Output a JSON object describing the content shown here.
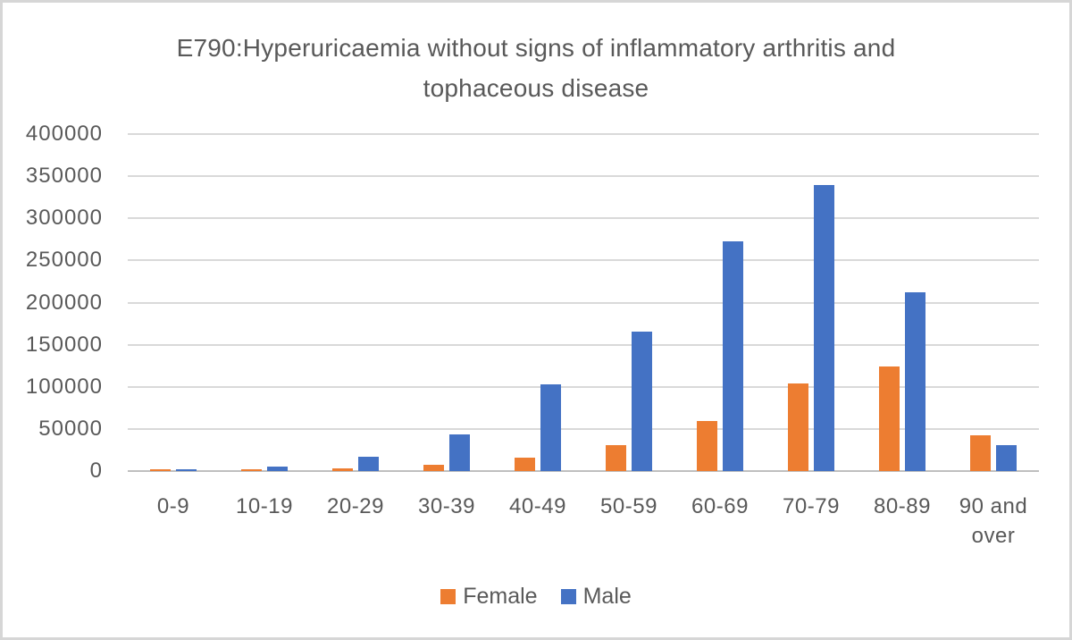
{
  "chart_data": {
    "type": "bar",
    "title": "E790:Hyperuricaemia without signs of inflammatory arthritis and tophaceous disease",
    "title_lines": [
      "E790:Hyperuricaemia without signs of inflammatory arthritis and",
      "tophaceous disease"
    ],
    "categories": [
      "0-9",
      "10-19",
      "20-29",
      "30-39",
      "40-49",
      "50-59",
      "60-69",
      "70-79",
      "80-89",
      "90 and over"
    ],
    "series": [
      {
        "name": "Female",
        "color": "#ED7D31",
        "values": [
          2000,
          1500,
          3500,
          7000,
          16000,
          31000,
          59000,
          104000,
          124000,
          42000
        ]
      },
      {
        "name": "Male",
        "color": "#4472C4",
        "values": [
          2000,
          5000,
          17500,
          44000,
          103000,
          166000,
          273000,
          340000,
          212000,
          31000
        ]
      }
    ],
    "xlabel": "",
    "ylabel": "",
    "ylim": [
      0,
      400000
    ],
    "ytick_interval": 50000,
    "ytick_labels": [
      "0",
      "50000",
      "100000",
      "150000",
      "200000",
      "250000",
      "300000",
      "350000",
      "400000"
    ],
    "grid": true,
    "legend_position": "bottom"
  },
  "theme": {
    "female_color": "#ED7D31",
    "male_color": "#4472C4",
    "grid_color": "#D9D9D9",
    "axis_line_color": "#BFBFBF",
    "text_color": "#595959",
    "frame_border_color": "#D6D6D6",
    "background": "#FFFFFF"
  }
}
